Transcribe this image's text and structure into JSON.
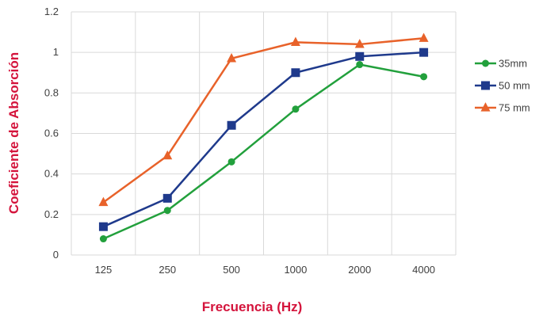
{
  "chart_data": {
    "type": "line",
    "categories": [
      "125",
      "250",
      "500",
      "1000",
      "2000",
      "4000"
    ],
    "series": [
      {
        "name": "35mm",
        "values": [
          0.08,
          0.22,
          0.46,
          0.72,
          0.94,
          0.88
        ],
        "color": "#22a03c",
        "marker": "circle"
      },
      {
        "name": "50 mm",
        "values": [
          0.14,
          0.28,
          0.64,
          0.9,
          0.98,
          1.0
        ],
        "color": "#1f3a8c",
        "marker": "square"
      },
      {
        "name": "75 mm",
        "values": [
          0.26,
          0.49,
          0.97,
          1.05,
          1.04,
          1.07
        ],
        "color": "#e8622a",
        "marker": "triangle"
      }
    ],
    "yticks": [
      "0",
      "0.2",
      "0.4",
      "0.6",
      "0.8",
      "1",
      "1.2"
    ],
    "ylim": [
      0,
      1.2
    ],
    "xlabel": "Frecuencia (Hz)",
    "ylabel": "Coeficiente de Absorción",
    "grid": true,
    "legend_position": "right",
    "axis_title_color": "#d4143c",
    "gridline_color": "#d9d9d9"
  }
}
